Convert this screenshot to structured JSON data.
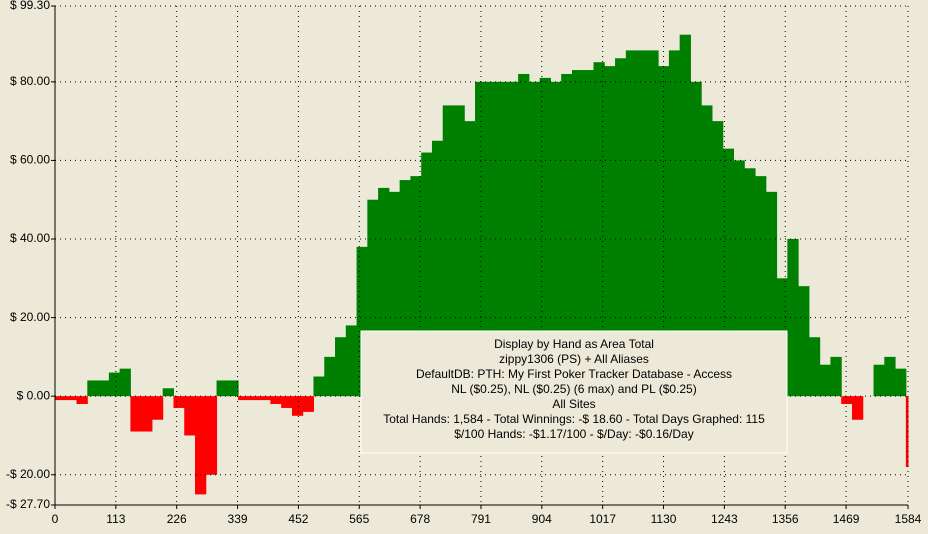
{
  "chart_data": {
    "type": "bar",
    "x": [
      0,
      20,
      40,
      60,
      80,
      100,
      120,
      140,
      160,
      180,
      200,
      220,
      240,
      260,
      280,
      300,
      320,
      340,
      360,
      380,
      400,
      420,
      440,
      460,
      480,
      500,
      520,
      540,
      560,
      580,
      600,
      620,
      640,
      660,
      680,
      700,
      720,
      740,
      760,
      780,
      800,
      820,
      840,
      860,
      880,
      900,
      920,
      940,
      960,
      980,
      1000,
      1020,
      1040,
      1060,
      1080,
      1100,
      1120,
      1140,
      1160,
      1180,
      1200,
      1220,
      1240,
      1260,
      1280,
      1300,
      1320,
      1340,
      1360,
      1380,
      1400,
      1420,
      1440,
      1460,
      1480,
      1500,
      1520,
      1540,
      1560,
      1580
    ],
    "values": [
      -1,
      -1,
      -2,
      4,
      4,
      6,
      7,
      -9,
      -9,
      -6,
      2,
      -3,
      -10,
      -25,
      -20,
      4,
      4,
      -1,
      -1,
      -1,
      -2,
      -3,
      -5,
      -4,
      5,
      10,
      15,
      18,
      38,
      50,
      53,
      52,
      55,
      56,
      62,
      65,
      74,
      74,
      70,
      80,
      80,
      80,
      80,
      82,
      80,
      81,
      80,
      82,
      83,
      83,
      85,
      84,
      86,
      88,
      88,
      88,
      84,
      88,
      92,
      80,
      74,
      70,
      63,
      60,
      58,
      56,
      52,
      30,
      40,
      28,
      15,
      8,
      10,
      -2,
      -6,
      0,
      8,
      10,
      7,
      -18
    ],
    "positive_color": "#008000",
    "negative_color": "#ff0000",
    "xlim": [
      0,
      1584
    ],
    "xticks": [
      0,
      113,
      226,
      339,
      452,
      565,
      678,
      791,
      904,
      1017,
      1130,
      1243,
      1356,
      1469,
      1584
    ],
    "ylim": [
      -27.7,
      99.3
    ],
    "yticks": [
      {
        "value": 99.3,
        "label": "$ 99.30"
      },
      {
        "value": 80,
        "label": "$ 80.00"
      },
      {
        "value": 60,
        "label": "$ 60.00"
      },
      {
        "value": 40,
        "label": "$ 40.00"
      },
      {
        "value": 20,
        "label": "$ 20.00"
      },
      {
        "value": 0,
        "label": "$ 0.00"
      },
      {
        "value": -20,
        "label": "-$ 20.00"
      },
      {
        "value": -27.7,
        "label": "-$ 27.70"
      }
    ],
    "grid": true,
    "annotations": [
      "Display by Hand as Area Total",
      "zippy1306 (PS) + All Aliases",
      "DefaultDB: PTH: My First Poker Tracker Database - Access",
      "NL ($0.25), NL ($0.25) (6 max) and PL ($0.25)",
      "All Sites",
      "Total Hands: 1,584 - Total Winnings: -$ 18.60 - Total Days Graphed: 115",
      "$/100 Hands: -$1.17/100 - $/Day: -$0.16/Day"
    ]
  }
}
